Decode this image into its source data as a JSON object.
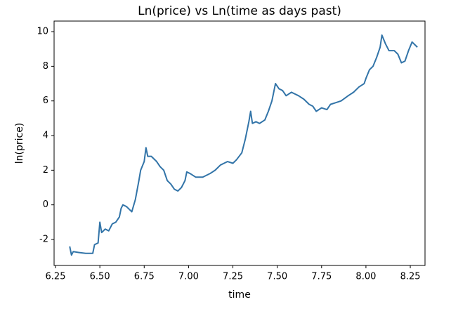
{
  "chart_data": {
    "type": "line",
    "title": "Ln(price) vs Ln(time as days past)",
    "x_label": "time",
    "y_label": "ln(price)",
    "x": [
      6.33,
      6.34,
      6.35,
      6.38,
      6.42,
      6.46,
      6.47,
      6.49,
      6.5,
      6.51,
      6.53,
      6.55,
      6.57,
      6.59,
      6.61,
      6.62,
      6.63,
      6.65,
      6.67,
      6.68,
      6.7,
      6.72,
      6.73,
      6.75,
      6.76,
      6.77,
      6.79,
      6.82,
      6.84,
      6.86,
      6.88,
      6.9,
      6.92,
      6.94,
      6.96,
      6.98,
      6.99,
      7.01,
      7.04,
      7.08,
      7.12,
      7.15,
      7.18,
      7.2,
      7.22,
      7.25,
      7.27,
      7.3,
      7.32,
      7.34,
      7.35,
      7.36,
      7.38,
      7.4,
      7.43,
      7.45,
      7.47,
      7.49,
      7.51,
      7.53,
      7.55,
      7.58,
      7.62,
      7.65,
      7.68,
      7.7,
      7.72,
      7.75,
      7.78,
      7.8,
      7.83,
      7.86,
      7.9,
      7.93,
      7.96,
      7.99,
      8.0,
      8.02,
      8.04,
      8.06,
      8.08,
      8.09,
      8.11,
      8.13,
      8.16,
      8.18,
      8.2,
      8.22,
      8.24,
      8.26,
      8.29
    ],
    "series": [
      {
        "color": "#3274a8",
        "values": [
          -2.4,
          -2.9,
          -2.7,
          -2.75,
          -2.8,
          -2.8,
          -2.3,
          -2.2,
          -1.0,
          -1.6,
          -1.4,
          -1.5,
          -1.1,
          -1.0,
          -0.7,
          -0.2,
          0.0,
          -0.1,
          -0.3,
          -0.4,
          0.3,
          1.4,
          2.0,
          2.5,
          3.3,
          2.8,
          2.8,
          2.5,
          2.2,
          2.0,
          1.4,
          1.2,
          0.9,
          0.8,
          1.0,
          1.4,
          1.9,
          1.8,
          1.6,
          1.6,
          1.8,
          2.0,
          2.3,
          2.4,
          2.5,
          2.4,
          2.6,
          3.0,
          3.8,
          4.8,
          5.4,
          4.7,
          4.8,
          4.7,
          4.9,
          5.4,
          6.0,
          7.0,
          6.7,
          6.6,
          6.3,
          6.5,
          6.3,
          6.1,
          5.8,
          5.7,
          5.4,
          5.6,
          5.5,
          5.8,
          5.9,
          6.0,
          6.3,
          6.5,
          6.8,
          7.0,
          7.3,
          7.8,
          8.0,
          8.5,
          9.1,
          9.8,
          9.3,
          8.9,
          8.9,
          8.7,
          8.2,
          8.3,
          8.9,
          9.4,
          9.1
        ]
      }
    ],
    "xlim": [
      6.242,
      8.333
    ],
    "ylim": [
      -3.5,
      10.61
    ],
    "xticks": [
      6.25,
      {
        "value": 6.5,
        "label": "6.50"
      },
      6.75,
      {
        "value": 7,
        "label": "7.00"
      },
      7.25,
      {
        "value": 7.5,
        "label": "7.50"
      },
      7.75,
      {
        "value": 8,
        "label": "8.00"
      },
      8.25
    ],
    "yticks": [
      -2,
      0,
      2,
      4,
      6,
      8,
      10
    ]
  }
}
